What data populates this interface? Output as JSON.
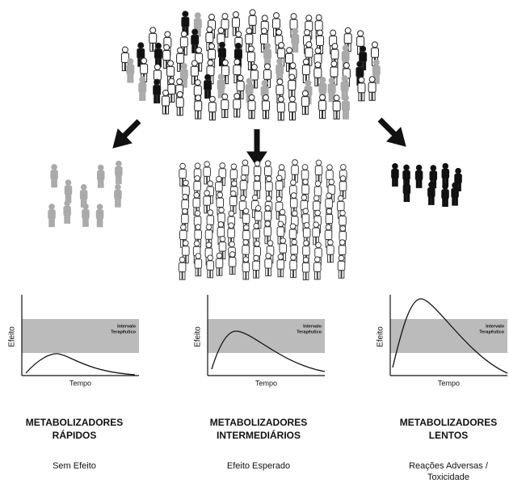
{
  "panels": [
    {
      "title_lines": [
        "METABOLIZADORES",
        "RÁPIDOS"
      ],
      "outcome_lines": [
        "Sem Efeito"
      ],
      "y_label": "Efeito",
      "x_label": "Tempo",
      "band_label_lines": [
        "Intervalo",
        "Terapêutico"
      ]
    },
    {
      "title_lines": [
        "METABOLIZADORES",
        "INTERMEDIÁRIOS"
      ],
      "outcome_lines": [
        "Efeito Esperado"
      ],
      "y_label": "Efeito",
      "x_label": "Tempo",
      "band_label_lines": [
        "Intervalo",
        "Terapêutico"
      ]
    },
    {
      "title_lines": [
        "METABOLIZADORES",
        "LENTOS"
      ],
      "outcome_lines": [
        "Reações Adversas /",
        "Toxicidade"
      ],
      "y_label": "Efeito",
      "x_label": "Tempo",
      "band_label_lines": [
        "Intervalo",
        "Terapêutico"
      ]
    }
  ]
}
